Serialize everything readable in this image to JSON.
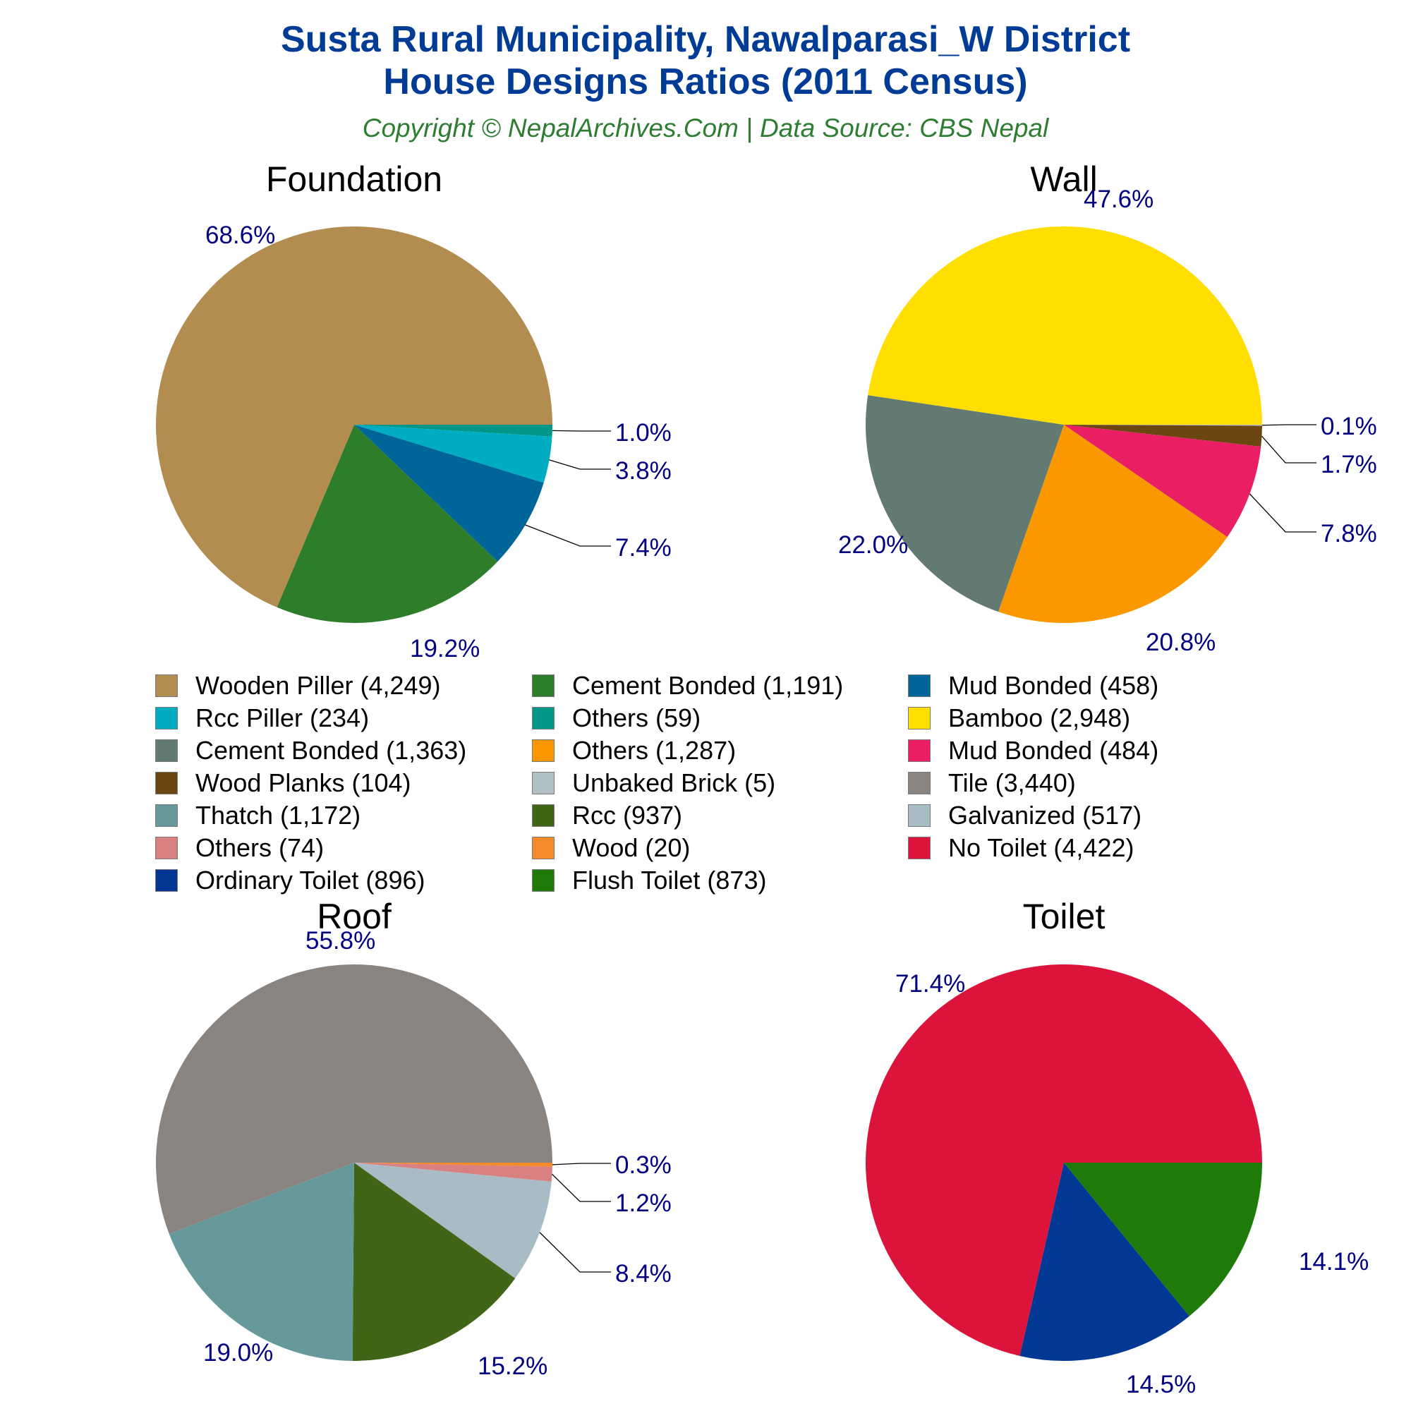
{
  "header": {
    "title_line1": "Susta Rural Municipality, Nawalparasi_W District",
    "title_line2": "House Designs Ratios (2011 Census)",
    "subtitle": "Copyright © NepalArchives.Com | Data Source: CBS Nepal"
  },
  "colors": {
    "title": "#003b95",
    "subtitle": "#2e7d32",
    "percent_label": "#000080"
  },
  "chart_data": [
    {
      "type": "pie",
      "title": "Foundation",
      "start_angle_deg": 0,
      "direction": "clockwise",
      "slices": [
        {
          "label": "Others",
          "value": 59,
          "percent": "1.0%",
          "color": "#009688"
        },
        {
          "label": "Rcc Piller",
          "value": 234,
          "percent": "3.8%",
          "color": "#00acc1"
        },
        {
          "label": "Mud Bonded",
          "value": 458,
          "percent": "7.4%",
          "color": "#006699"
        },
        {
          "label": "Cement Bonded",
          "value": 1191,
          "percent": "19.2%",
          "color": "#2e7d2a"
        },
        {
          "label": "Wooden Piller",
          "value": 4249,
          "percent": "68.6%",
          "color": "#b38d50"
        }
      ]
    },
    {
      "type": "pie",
      "title": "Wall",
      "start_angle_deg": 0,
      "direction": "clockwise",
      "slices": [
        {
          "label": "Unbaked Brick",
          "value": 5,
          "percent": "0.1%",
          "color": "#b0bec5"
        },
        {
          "label": "Wood Planks",
          "value": 104,
          "percent": "1.7%",
          "color": "#6b4610"
        },
        {
          "label": "Mud Bonded",
          "value": 484,
          "percent": "7.8%",
          "color": "#e91e63"
        },
        {
          "label": "Others",
          "value": 1287,
          "percent": "20.8%",
          "color": "#fb9800"
        },
        {
          "label": "Cement Bonded",
          "value": 1363,
          "percent": "22.0%",
          "color": "#637a72"
        },
        {
          "label": "Bamboo",
          "value": 2948,
          "percent": "47.6%",
          "color": "#ffde00"
        }
      ]
    },
    {
      "type": "pie",
      "title": "Roof",
      "start_angle_deg": 0,
      "direction": "clockwise",
      "slices": [
        {
          "label": "Wood",
          "value": 20,
          "percent": "0.3%",
          "color": "#f58a2a"
        },
        {
          "label": "Others",
          "value": 74,
          "percent": "1.2%",
          "color": "#d98080"
        },
        {
          "label": "Galvanized",
          "value": 517,
          "percent": "8.4%",
          "color": "#a9bcc5"
        },
        {
          "label": "Rcc",
          "value": 937,
          "percent": "15.2%",
          "color": "#416516"
        },
        {
          "label": "Thatch",
          "value": 1172,
          "percent": "19.0%",
          "color": "#669999"
        },
        {
          "label": "Tile",
          "value": 3440,
          "percent": "55.8%",
          "color": "#8a8480"
        }
      ]
    },
    {
      "type": "pie",
      "title": "Toilet",
      "start_angle_deg": 0,
      "direction": "clockwise",
      "slices": [
        {
          "label": "Flush Toilet",
          "value": 873,
          "percent": "14.1%",
          "color": "#1e7b0a"
        },
        {
          "label": "Ordinary Toilet",
          "value": 896,
          "percent": "14.5%",
          "color": "#003893"
        },
        {
          "label": "No Toilet",
          "value": 4422,
          "percent": "71.4%",
          "color": "#dc143c"
        }
      ]
    }
  ],
  "legend": {
    "columns": [
      [
        {
          "text": "Wooden Piller (4,249)",
          "color": "#b38d50"
        },
        {
          "text": "Rcc Piller (234)",
          "color": "#00acc1"
        },
        {
          "text": "Cement Bonded (1,363)",
          "color": "#637a72"
        },
        {
          "text": "Wood Planks (104)",
          "color": "#6b4610"
        },
        {
          "text": "Thatch (1,172)",
          "color": "#669999"
        },
        {
          "text": "Others (74)",
          "color": "#d98080"
        },
        {
          "text": "Ordinary Toilet (896)",
          "color": "#003893"
        }
      ],
      [
        {
          "text": "Cement Bonded (1,191)",
          "color": "#2e7d2a"
        },
        {
          "text": "Others (59)",
          "color": "#009688"
        },
        {
          "text": "Others (1,287)",
          "color": "#fb9800"
        },
        {
          "text": "Unbaked Brick (5)",
          "color": "#b0bec5"
        },
        {
          "text": "Rcc (937)",
          "color": "#416516"
        },
        {
          "text": "Wood (20)",
          "color": "#f58a2a"
        },
        {
          "text": "Flush Toilet (873)",
          "color": "#1e7b0a"
        }
      ],
      [
        {
          "text": "Mud Bonded (458)",
          "color": "#006699"
        },
        {
          "text": "Bamboo (2,948)",
          "color": "#ffde00"
        },
        {
          "text": "Mud Bonded (484)",
          "color": "#e91e63"
        },
        {
          "text": "Tile (3,440)",
          "color": "#8a8480"
        },
        {
          "text": "Galvanized (517)",
          "color": "#a9bcc5"
        },
        {
          "text": "No Toilet (4,422)",
          "color": "#dc143c"
        }
      ]
    ]
  }
}
